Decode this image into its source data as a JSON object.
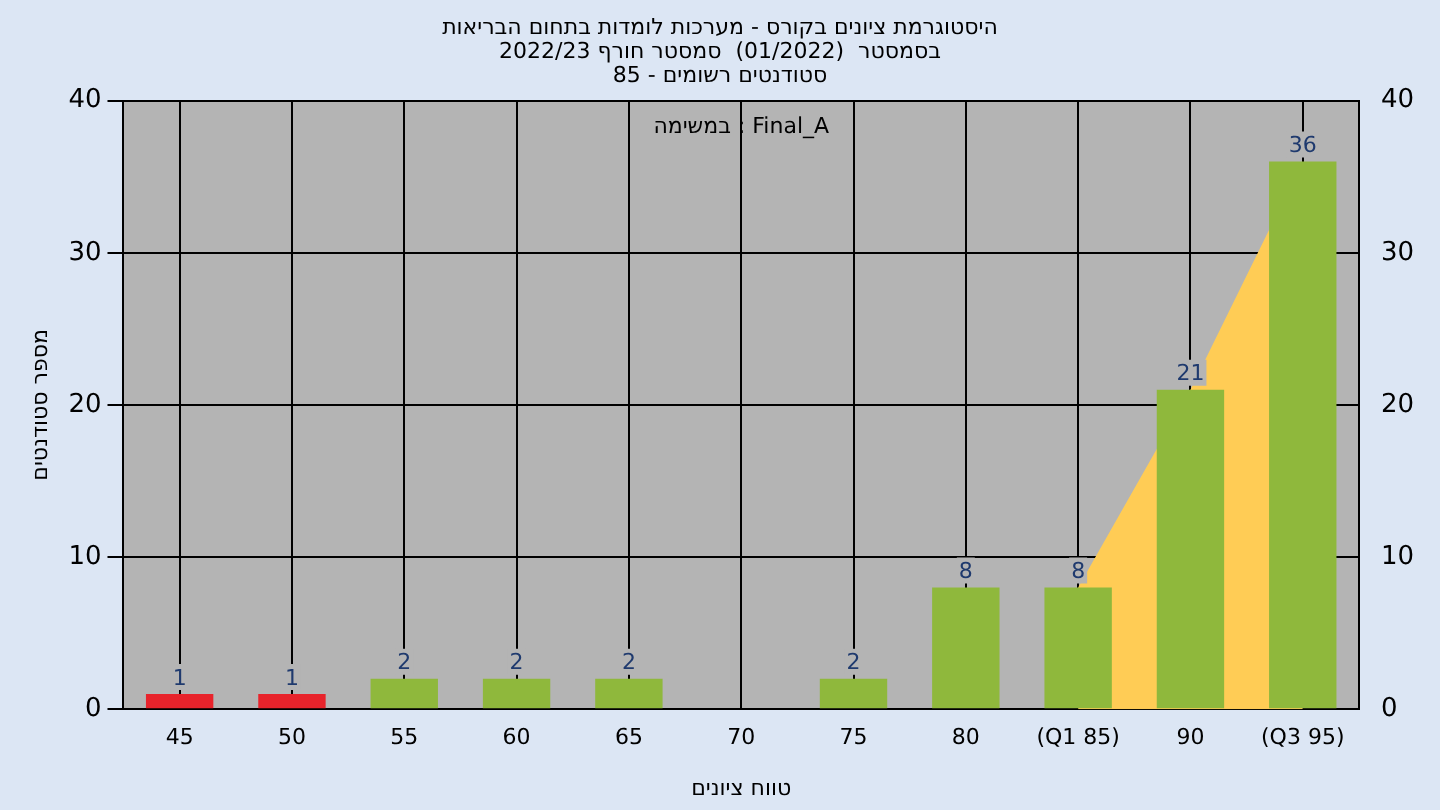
{
  "chart_data": {
    "type": "bar",
    "title": [
      "היסטוגרמת ציונים בקורס - מערכות לומדות בתחום הבריאות",
      "בסמסטר  (01/2022)  סמסטר חורף 2022/23",
      "סטודנטים רשומים - 85"
    ],
    "xlabel": "טווח ציונים",
    "ylabel": "מספר סטודנטים",
    "annotations": [
      "במשימה : Final_A"
    ],
    "categories": [
      "45",
      "50",
      "55",
      "60",
      "65",
      "70",
      "75",
      "80",
      "(Q1 85)",
      "90",
      "(Q3 95)"
    ],
    "series": [
      {
        "type": "area",
        "color": "#ffcc55",
        "values": [
          null,
          null,
          null,
          null,
          null,
          null,
          null,
          null,
          8,
          21,
          36
        ]
      },
      {
        "value_labels": [
          "1",
          "1",
          "2",
          "2",
          "2",
          null,
          "2",
          "8",
          "8",
          "21",
          "36"
        ],
        "colors": [
          "#e8232b",
          "#e8232b",
          "#8fb83c",
          "#8fb83c",
          "#8fb83c",
          "#8fb83c",
          "#8fb83c",
          "#8fb83c",
          "#8fb83c",
          "#8fb83c",
          "#8fb83c"
        ],
        "values": [
          1,
          1,
          2,
          2,
          2,
          null,
          2,
          8,
          8,
          21,
          36
        ]
      }
    ],
    "ylim": [
      0,
      40
    ],
    "yticks": [
      0,
      10,
      20,
      30,
      40
    ],
    "y2lim": [
      0,
      40
    ],
    "y2ticks": [
      0,
      10,
      20,
      30,
      40
    ],
    "grid": true,
    "legend": false
  }
}
